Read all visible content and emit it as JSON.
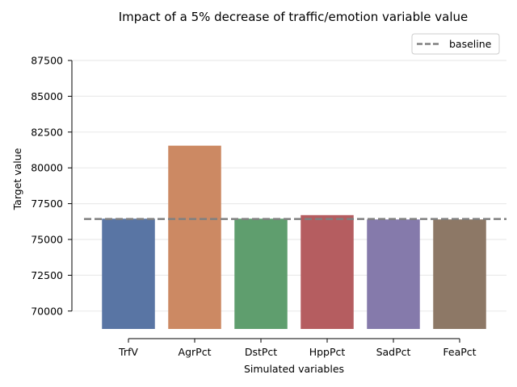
{
  "chart_data": {
    "type": "bar",
    "title": "Impact of a 5% decrease of traffic/emotion variable value",
    "xlabel": "Simulated variables",
    "ylabel": "Target value",
    "categories": [
      "TrfV",
      "AgrPct",
      "DstPct",
      "HppPct",
      "SadPct",
      "FeaPct"
    ],
    "values": [
      76450,
      81550,
      76450,
      76700,
      76400,
      76400
    ],
    "colors": [
      "#5975a4",
      "#cc8963",
      "#5f9e6e",
      "#b55d60",
      "#857aab",
      "#8d7866"
    ],
    "bar_bottom": 68750,
    "baseline": {
      "name": "baseline",
      "value": 76430,
      "color": "#808080",
      "style": "dashed"
    },
    "ylim": [
      68750,
      87500
    ],
    "yticks": [
      70000,
      72500,
      75000,
      77500,
      80000,
      82500,
      85000,
      87500
    ],
    "ytick_labels": [
      "70000",
      "72500",
      "75000",
      "77500",
      "80000",
      "82500",
      "85000",
      "87500"
    ],
    "grid": "horizontal",
    "legend_position": "top-right"
  }
}
